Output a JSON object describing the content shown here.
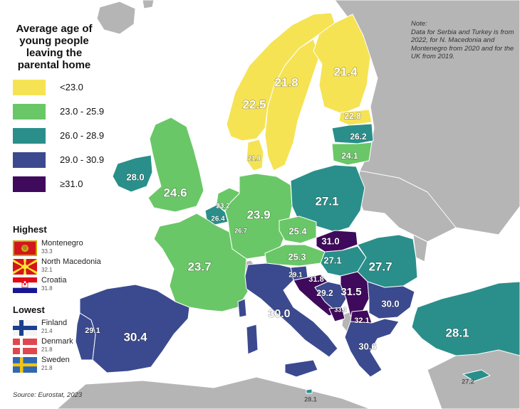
{
  "title": "Average age of young people leaving the parental home",
  "legend": [
    {
      "label": "<23.0",
      "color": "#f5e354"
    },
    {
      "label": "23.0 - 25.9",
      "color": "#6ac767"
    },
    {
      "label": "26.0 - 28.9",
      "color": "#2a8f8a"
    },
    {
      "label": "29.0 - 30.9",
      "color": "#3b4a8f"
    },
    {
      "label": "≥31.0",
      "color": "#3f0a5c"
    }
  ],
  "highest": {
    "heading": "Highest",
    "items": [
      {
        "name": "Montenegro",
        "value": "33.3",
        "flag": "montenegro-flag-icon"
      },
      {
        "name": "North Macedonia",
        "value": "32.1",
        "flag": "north-macedonia-flag-icon"
      },
      {
        "name": "Croatia",
        "value": "31.8",
        "flag": "croatia-flag-icon"
      }
    ]
  },
  "lowest": {
    "heading": "Lowest",
    "items": [
      {
        "name": "Finland",
        "value": "21.4",
        "flag": "finland-flag-icon"
      },
      {
        "name": "Denmark",
        "value": "21.8",
        "flag": "denmark-flag-icon"
      },
      {
        "name": "Sweden",
        "value": "21.8",
        "flag": "sweden-flag-icon"
      }
    ]
  },
  "note": "Note:\nData for Serbia and Turkey is from 2022, for N. Macedonia and Montenegro from 2020 and for the UK from 2019.",
  "source": "Source: Eurostat, 2023",
  "colors": {
    "no_data": "#b5b5b5",
    "sea": "#ffffff",
    "border": "#ffffff"
  },
  "regions": [
    {
      "id": "norway",
      "value": "22.5"
    },
    {
      "id": "sweden",
      "value": "21.8"
    },
    {
      "id": "finland",
      "value": "21.4"
    },
    {
      "id": "estonia",
      "value": "22.8"
    },
    {
      "id": "latvia",
      "value": "26.2"
    },
    {
      "id": "lithuania",
      "value": "24.1"
    },
    {
      "id": "denmark",
      "value": "21.8"
    },
    {
      "id": "ireland",
      "value": "28.0"
    },
    {
      "id": "uk",
      "value": "24.6"
    },
    {
      "id": "netherlands",
      "value": "23.2"
    },
    {
      "id": "belgium",
      "value": "26.4"
    },
    {
      "id": "luxembourg",
      "value": "26.7"
    },
    {
      "id": "germany",
      "value": "23.9"
    },
    {
      "id": "poland",
      "value": "27.1"
    },
    {
      "id": "czechia",
      "value": "25.4"
    },
    {
      "id": "slovakia",
      "value": "31.0"
    },
    {
      "id": "austria",
      "value": "25.3"
    },
    {
      "id": "hungary",
      "value": "27.1"
    },
    {
      "id": "romania",
      "value": "27.7"
    },
    {
      "id": "france",
      "value": "23.7"
    },
    {
      "id": "slovenia",
      "value": "29.1"
    },
    {
      "id": "croatia",
      "value": "31.8"
    },
    {
      "id": "bosnia",
      "value": "29.2"
    },
    {
      "id": "serbia",
      "value": "31.5"
    },
    {
      "id": "montenegro",
      "value": "33.3"
    },
    {
      "id": "north-macedonia",
      "value": "32.1"
    },
    {
      "id": "bulgaria",
      "value": "30.0"
    },
    {
      "id": "italy",
      "value": "30.0"
    },
    {
      "id": "greece",
      "value": "30.6"
    },
    {
      "id": "spain",
      "value": "30.4"
    },
    {
      "id": "portugal",
      "value": "29.1"
    },
    {
      "id": "turkey",
      "value": "28.1"
    },
    {
      "id": "cyprus",
      "value": "27.2"
    },
    {
      "id": "malta",
      "value": "28.1"
    }
  ]
}
